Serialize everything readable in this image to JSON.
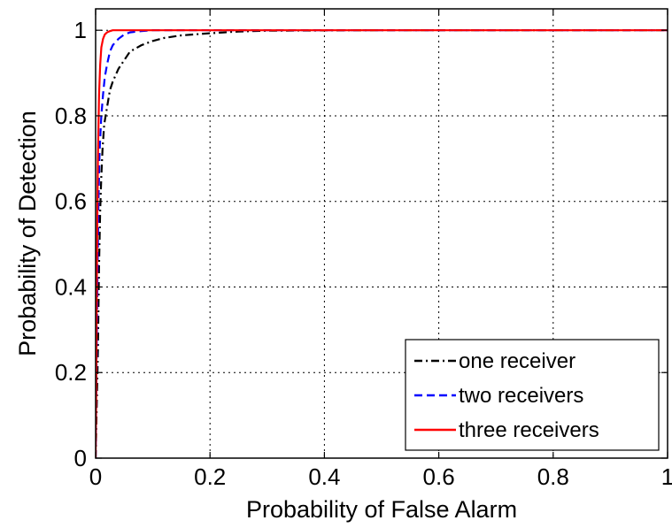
{
  "chart_data": {
    "type": "line",
    "xlabel": "Probability of False Alarm",
    "ylabel": "Probability of Detection",
    "xlim": [
      0,
      1
    ],
    "ylim": [
      0,
      1.05
    ],
    "x_ticks": [
      0,
      0.2,
      0.4,
      0.6,
      0.8,
      1
    ],
    "y_ticks": [
      0,
      0.2,
      0.4,
      0.6,
      0.8,
      1
    ],
    "x_tick_labels": [
      "0",
      "0.2",
      "0.4",
      "0.6",
      "0.8",
      "1"
    ],
    "y_tick_labels": [
      "0",
      "0.2",
      "0.4",
      "0.6",
      "0.8",
      "1"
    ],
    "grid": true,
    "legend_position": "bottom-right",
    "series": [
      {
        "name": "one receiver",
        "color": "#000000",
        "dash": "dash-dot",
        "x": [
          0,
          0.004,
          0.006,
          0.008,
          0.01,
          0.012,
          0.015,
          0.02,
          0.025,
          0.03,
          0.04,
          0.05,
          0.06,
          0.08,
          0.1,
          0.12,
          0.15,
          0.2,
          0.25,
          0.3,
          0.5,
          0.8,
          1
        ],
        "y": [
          0,
          0.25,
          0.45,
          0.58,
          0.66,
          0.72,
          0.78,
          0.82,
          0.86,
          0.88,
          0.91,
          0.93,
          0.95,
          0.965,
          0.975,
          0.982,
          0.988,
          0.993,
          0.997,
          0.999,
          1,
          1,
          1
        ]
      },
      {
        "name": "two receivers",
        "color": "#0000ff",
        "dash": "dashed",
        "x": [
          0,
          0.003,
          0.005,
          0.007,
          0.01,
          0.013,
          0.016,
          0.02,
          0.025,
          0.03,
          0.04,
          0.05,
          0.06,
          0.08,
          0.1,
          0.2,
          0.5,
          1
        ],
        "y": [
          0,
          0.4,
          0.6,
          0.72,
          0.8,
          0.85,
          0.89,
          0.92,
          0.95,
          0.965,
          0.98,
          0.99,
          0.995,
          0.998,
          1,
          1,
          1,
          1
        ]
      },
      {
        "name": "three receivers",
        "color": "#ff0000",
        "dash": "solid",
        "x": [
          0,
          0.001,
          0.002,
          0.004,
          0.006,
          0.008,
          0.01,
          0.013,
          0.016,
          0.02,
          0.025,
          0.03,
          0.04,
          0.06,
          0.1,
          0.5,
          1
        ],
        "y": [
          0,
          0.15,
          0.4,
          0.7,
          0.85,
          0.92,
          0.96,
          0.98,
          0.99,
          0.995,
          0.998,
          1,
          1,
          1,
          1,
          1,
          1
        ]
      }
    ]
  }
}
